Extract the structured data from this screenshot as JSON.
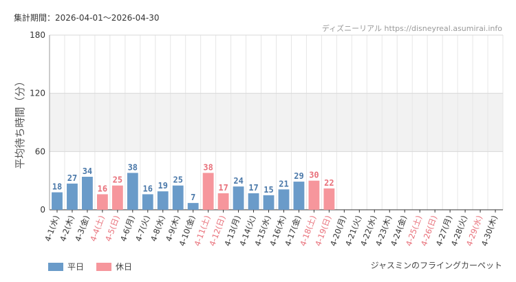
{
  "period_label": "集計期間：2026-04-01〜2026-04-30",
  "source_text": "ディズニーリアル https://disneyreal.asumirai.info",
  "attraction_name": "ジャスミンのフライングカーペット",
  "legend": {
    "weekday": {
      "label": "平日",
      "color": "#6a9bc9"
    },
    "holiday": {
      "label": "休日",
      "color": "#f6969c"
    }
  },
  "colors": {
    "weekday_text": "#4a78a9",
    "holiday_text": "#e8707a",
    "band": "#f2f2f2",
    "grid": "#e6e6e6"
  },
  "chart_data": {
    "type": "bar",
    "ylabel": "平均待ち時間（分）",
    "ylim": [
      0,
      180
    ],
    "yticks": [
      0,
      60,
      120,
      180
    ],
    "shaded_band": [
      60,
      120
    ],
    "grid": true,
    "categories": [
      "4-1(水)",
      "4-2(木)",
      "4-3(金)",
      "4-4(土)",
      "4-5(日)",
      "4-6(月)",
      "4-7(火)",
      "4-8(水)",
      "4-9(木)",
      "4-10(金)",
      "4-11(土)",
      "4-12(日)",
      "4-13(月)",
      "4-14(火)",
      "4-15(水)",
      "4-16(木)",
      "4-17(金)",
      "4-18(土)",
      "4-19(日)",
      "4-20(月)",
      "4-21(火)",
      "4-22(水)",
      "4-23(木)",
      "4-24(金)",
      "4-25(土)",
      "4-26(日)",
      "4-27(月)",
      "4-28(火)",
      "4-29(水)",
      "4-30(木)"
    ],
    "values": [
      18,
      27,
      34,
      16,
      25,
      38,
      16,
      19,
      25,
      7,
      38,
      17,
      24,
      17,
      15,
      21,
      29,
      30,
      22,
      null,
      null,
      null,
      null,
      null,
      null,
      null,
      null,
      null,
      null,
      null
    ],
    "day_type": [
      "weekday",
      "weekday",
      "weekday",
      "holiday",
      "holiday",
      "weekday",
      "weekday",
      "weekday",
      "weekday",
      "weekday",
      "holiday",
      "holiday",
      "weekday",
      "weekday",
      "weekday",
      "weekday",
      "weekday",
      "holiday",
      "holiday",
      "weekday",
      "weekday",
      "weekday",
      "weekday",
      "weekday",
      "holiday",
      "holiday",
      "weekday",
      "weekday",
      "holiday",
      "weekday"
    ]
  }
}
